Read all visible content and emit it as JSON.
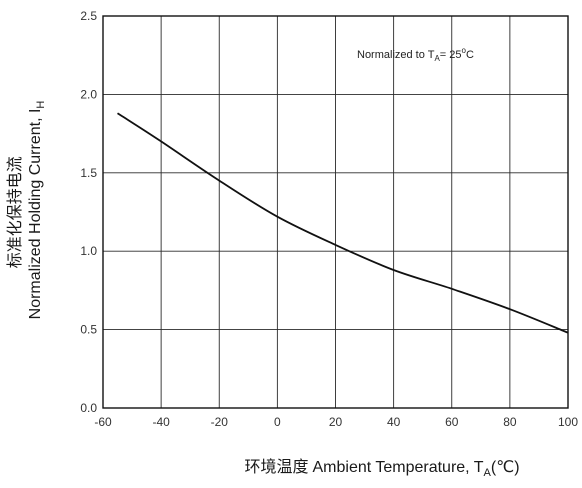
{
  "chart_data": {
    "type": "line",
    "xlabel_cn": "环境温度",
    "xlabel_en": "Ambient Temperature, T",
    "xlabel_sub": "A",
    "xlabel_unit": "(℃)",
    "ylabel_cn": "标准化保持电流",
    "ylabel_en": "Normalized Holding Current, I",
    "ylabel_sub": "H",
    "annotation": {
      "prefix": "Normalized to T",
      "sub": "A",
      "suffix": "= 25",
      "sup": "o",
      "unit": "C"
    },
    "xlim": [
      -60,
      100
    ],
    "ylim": [
      0.0,
      2.5
    ],
    "x_ticks": [
      -60,
      -40,
      -20,
      0,
      20,
      40,
      60,
      80,
      100
    ],
    "x_tick_labels": [
      "-60",
      "-40",
      "-20",
      "0",
      "20",
      "40",
      "60",
      "80",
      "100"
    ],
    "y_ticks": [
      0.0,
      0.5,
      1.0,
      1.5,
      2.0,
      2.5
    ],
    "y_tick_labels": [
      "0.0",
      "0.5",
      "1.0",
      "1.5",
      "2.0",
      "2.5"
    ],
    "grid": true,
    "series": [
      {
        "x": [
          -55,
          -40,
          -20,
          0,
          20,
          40,
          60,
          80,
          100
        ],
        "y": [
          1.88,
          1.7,
          1.45,
          1.22,
          1.04,
          0.88,
          0.76,
          0.63,
          0.48
        ]
      }
    ]
  },
  "colors": {
    "line": "#111111",
    "grid": "#2a2a2a",
    "frame": "#111111"
  }
}
